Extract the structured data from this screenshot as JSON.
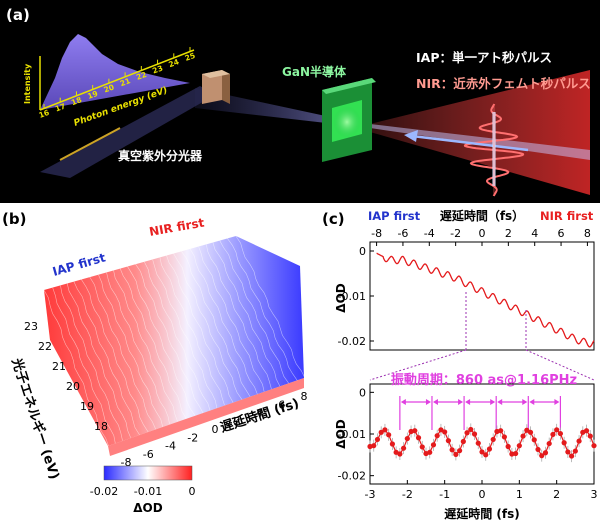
{
  "panel_a": {
    "tag": "(a)",
    "spectrum_ylabel": "Intensity",
    "spectrum_xlabel": "Photon energy (eV)",
    "spectrum_ticks": [
      "16",
      "17",
      "18",
      "19",
      "20",
      "21",
      "22",
      "23",
      "24",
      "25"
    ],
    "spectrometer_label": "真空紫外分光器",
    "sample_label": "GaN半導体",
    "legend_iap": "IAP：単一アト秒パルス",
    "legend_nir": "NIR：近赤外フェムト秒パルス",
    "colors": {
      "bg": "#000000",
      "spectrum": "#7d6bd6",
      "ticks": "#e8e000",
      "iap": "#ffffff",
      "nir": "#ff8a80",
      "sample": "#27c24c"
    }
  },
  "panel_b": {
    "tag": "(b)",
    "iap_first": "IAP first",
    "nir_first": "NIR first",
    "ylabel": "光子エネルギー (eV)",
    "y_ticks": [
      "23",
      "22",
      "21",
      "20",
      "19",
      "18"
    ],
    "xlabel": "遅延時間 (fs)",
    "x_ticks": [
      "-8",
      "-6",
      "-4",
      "-2",
      "0",
      "2",
      "4",
      "6",
      "8"
    ],
    "colorbar_ticks": [
      "-0.02",
      "-0.01",
      "0"
    ],
    "colorbar_label": "ΔOD",
    "colors": {
      "neg": "#2b2bff",
      "zero": "#ffffff",
      "pos": "#ff2020",
      "iap_text": "#2233cc",
      "nir_text": "#e82020"
    }
  },
  "panel_c": {
    "tag": "(c)",
    "iap_first": "IAP first",
    "nir_first": "NIR first",
    "top_xlabel": "遅延時間（fs）",
    "top_x_ticks": [
      "-8",
      "-6",
      "-4",
      "-2",
      "0",
      "2",
      "4",
      "6",
      "8"
    ],
    "top_y_ticks": [
      "0",
      "-0.01",
      "-0.02"
    ],
    "top_ylabel": "ΔOD",
    "period_label": "振動周期：860 as@1.16PHz",
    "bottom_y_ticks": [
      "0",
      "-0.01",
      "-0.02"
    ],
    "bottom_ylabel": "ΔOD",
    "bottom_x_ticks": [
      "-3",
      "-2",
      "-1",
      "0",
      "1",
      "2",
      "3"
    ],
    "bottom_xlabel": "遅延時間 (fs)",
    "colors": {
      "curve": "#e41a1c",
      "period": "#e040e0",
      "zoom_lines": "#9b30b0"
    }
  },
  "chart_data": [
    {
      "type": "line",
      "panel": "c-top",
      "xlabel": "遅延時間（fs）",
      "ylabel": "ΔOD",
      "xlim": [
        -8.5,
        8.5
      ],
      "ylim": [
        -0.022,
        0.002
      ],
      "x_ticks": [
        -8,
        -6,
        -4,
        -2,
        0,
        2,
        4,
        6,
        8
      ],
      "y_ticks": [
        0,
        -0.01,
        -0.02
      ],
      "x": [
        -8.0,
        -7.0,
        -6.0,
        -5.0,
        -4.0,
        -3.0,
        -2.0,
        -1.0,
        0.0,
        1.0,
        2.0,
        3.0,
        4.0,
        5.0,
        6.0,
        7.0,
        8.0,
        8.5
      ],
      "y": [
        -0.0005,
        -0.002,
        -0.002,
        -0.003,
        -0.004,
        -0.005,
        -0.006,
        -0.0075,
        -0.009,
        -0.0105,
        -0.012,
        -0.0135,
        -0.015,
        -0.0165,
        -0.018,
        -0.0195,
        -0.0205,
        -0.0205
      ],
      "oscillation": {
        "period_fs": 0.86,
        "amplitude": 0.0008
      }
    },
    {
      "type": "scatter",
      "panel": "c-bottom",
      "xlabel": "遅延時間 (fs)",
      "ylabel": "ΔOD",
      "xlim": [
        -3,
        3
      ],
      "ylim": [
        -0.022,
        0.002
      ],
      "x_ticks": [
        -3,
        -2,
        -1,
        0,
        1,
        2,
        3
      ],
      "y_ticks": [
        0,
        -0.01,
        -0.02
      ],
      "x": [
        -3.0,
        -2.9,
        -2.8,
        -2.7,
        -2.6,
        -2.5,
        -2.4,
        -2.3,
        -2.2,
        -2.1,
        -2.0,
        -1.9,
        -1.8,
        -1.7,
        -1.6,
        -1.5,
        -1.4,
        -1.3,
        -1.2,
        -1.1,
        -1.0,
        -0.9,
        -0.8,
        -0.7,
        -0.6,
        -0.5,
        -0.4,
        -0.3,
        -0.2,
        -0.1,
        0.0,
        0.1,
        0.2,
        0.3,
        0.4,
        0.5,
        0.6,
        0.7,
        0.8,
        0.9,
        1.0,
        1.1,
        1.2,
        1.3,
        1.4,
        1.5,
        1.6,
        1.7,
        1.8,
        1.9,
        2.0,
        2.1,
        2.2,
        2.3,
        2.4,
        2.5,
        2.6,
        2.7,
        2.8,
        2.9,
        3.0
      ],
      "y": [
        -0.013,
        -0.0128,
        -0.0113,
        -0.0096,
        -0.009,
        -0.0102,
        -0.0124,
        -0.0144,
        -0.0148,
        -0.0134,
        -0.0111,
        -0.0094,
        -0.0092,
        -0.0109,
        -0.0131,
        -0.0147,
        -0.0144,
        -0.0126,
        -0.0104,
        -0.009,
        -0.0095,
        -0.0116,
        -0.0138,
        -0.0149,
        -0.014,
        -0.0118,
        -0.0097,
        -0.0089,
        -0.01,
        -0.0122,
        -0.0143,
        -0.015,
        -0.0136,
        -0.0113,
        -0.0094,
        -0.0092,
        -0.0107,
        -0.013,
        -0.0148,
        -0.0147,
        -0.0128,
        -0.0105,
        -0.0091,
        -0.0096,
        -0.0114,
        -0.0137,
        -0.0152,
        -0.0145,
        -0.0123,
        -0.0101,
        -0.009,
        -0.0099,
        -0.0121,
        -0.0143,
        -0.0153,
        -0.0141,
        -0.0117,
        -0.0096,
        -0.0092,
        -0.0105,
        -0.0128
      ],
      "period_markers_fs": [
        -2.2,
        -1.34,
        -0.48,
        0.38,
        1.24,
        2.1
      ]
    }
  ]
}
